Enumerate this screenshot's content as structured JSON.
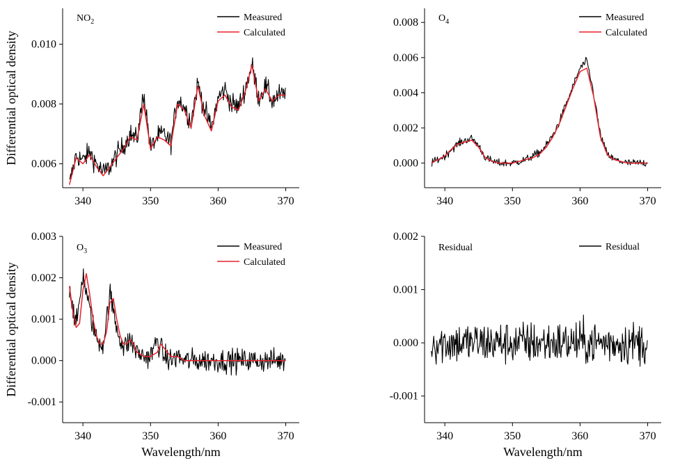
{
  "chart_data": [
    {
      "type": "line",
      "panel_label_main": "NO",
      "panel_label_sub": "2",
      "ylabel": "Differential optical density",
      "xlabel": "",
      "xlim": [
        337,
        372
      ],
      "ylim": [
        0.0052,
        0.0112
      ],
      "xticks": [
        340,
        350,
        360,
        370
      ],
      "xtick_labels": [
        "340",
        "350",
        "360",
        "370"
      ],
      "yticks": [
        0.006,
        0.008,
        0.01
      ],
      "ytick_labels": [
        "0.006",
        "0.008",
        "0.010"
      ],
      "legend_position": "top-right",
      "series": [
        {
          "name": "Measured",
          "color": "#000000",
          "noise": 0.00035,
          "x": [
            338,
            339,
            340,
            341,
            342,
            343,
            344,
            345,
            346,
            347,
            348,
            349,
            350,
            351,
            352,
            353,
            354,
            355,
            356,
            357,
            358,
            359,
            360,
            361,
            362,
            363,
            364,
            365,
            366,
            367,
            368,
            369,
            370
          ],
          "y": [
            0.0053,
            0.0063,
            0.0061,
            0.0064,
            0.006,
            0.0057,
            0.0059,
            0.0063,
            0.0066,
            0.007,
            0.0068,
            0.0084,
            0.0065,
            0.0069,
            0.007,
            0.0067,
            0.0082,
            0.0079,
            0.0074,
            0.0087,
            0.0078,
            0.0072,
            0.0082,
            0.0085,
            0.008,
            0.0079,
            0.0085,
            0.0093,
            0.0082,
            0.0086,
            0.0081,
            0.0083,
            0.0083
          ]
        },
        {
          "name": "Calculated",
          "color": "#e8202a",
          "noise": 0,
          "x": [
            338,
            339,
            340,
            341,
            342,
            343,
            344,
            345,
            346,
            347,
            348,
            349,
            350,
            351,
            352,
            353,
            354,
            355,
            356,
            357,
            358,
            359,
            360,
            361,
            362,
            363,
            364,
            365,
            366,
            367,
            368,
            369,
            370
          ],
          "y": [
            0.0053,
            0.0062,
            0.006,
            0.0063,
            0.0059,
            0.0056,
            0.0059,
            0.0062,
            0.0065,
            0.0069,
            0.0068,
            0.008,
            0.0065,
            0.0069,
            0.0068,
            0.0066,
            0.008,
            0.0078,
            0.0072,
            0.0086,
            0.0076,
            0.0071,
            0.0081,
            0.0083,
            0.0079,
            0.0078,
            0.0084,
            0.0093,
            0.0081,
            0.0085,
            0.0081,
            0.0083,
            0.0083
          ]
        }
      ]
    },
    {
      "type": "line",
      "panel_label_main": "O",
      "panel_label_sub": "4",
      "ylabel": "",
      "xlabel": "",
      "xlim": [
        337,
        372
      ],
      "ylim": [
        -0.0014,
        0.0088
      ],
      "xticks": [
        340,
        350,
        360,
        370
      ],
      "xtick_labels": [
        "340",
        "350",
        "360",
        "370"
      ],
      "yticks": [
        0.0,
        0.002,
        0.004,
        0.006,
        0.008
      ],
      "ytick_labels": [
        "0.000",
        "0.002",
        "0.004",
        "0.006",
        "0.008"
      ],
      "legend_position": "top-right",
      "series": [
        {
          "name": "Measured",
          "color": "#000000",
          "noise": 0.00022,
          "x": [
            338,
            339,
            340,
            341,
            342,
            343,
            344,
            345,
            346,
            347,
            348,
            349,
            350,
            351,
            352,
            353,
            354,
            355,
            356,
            357,
            358,
            359,
            360,
            361,
            362,
            363,
            364,
            365,
            366,
            367,
            368,
            369,
            370
          ],
          "y": [
            0.0,
            0.0002,
            0.0004,
            0.0008,
            0.0011,
            0.0013,
            0.0014,
            0.001,
            0.0003,
            0.0001,
            0.0,
            0.0,
            0.0,
            0.0001,
            0.0002,
            0.0004,
            0.0006,
            0.001,
            0.0016,
            0.0024,
            0.0034,
            0.0044,
            0.0054,
            0.0058,
            0.004,
            0.0016,
            0.0005,
            0.0002,
            0.0001,
            0.0,
            0.0,
            0.0,
            0.0
          ]
        },
        {
          "name": "Calculated",
          "color": "#e8202a",
          "noise": 0,
          "x": [
            338,
            339,
            340,
            341,
            342,
            343,
            344,
            345,
            346,
            347,
            348,
            349,
            350,
            351,
            352,
            353,
            354,
            355,
            356,
            357,
            358,
            359,
            360,
            361,
            362,
            363,
            364,
            365,
            366,
            367,
            368,
            369,
            370
          ],
          "y": [
            0.0,
            0.0002,
            0.0004,
            0.0008,
            0.0011,
            0.0012,
            0.0013,
            0.0009,
            0.0003,
            0.0001,
            0.0,
            0.0,
            0.0,
            0.0001,
            0.0002,
            0.0003,
            0.0005,
            0.0009,
            0.0015,
            0.0023,
            0.0033,
            0.0043,
            0.0052,
            0.0054,
            0.0038,
            0.0015,
            0.0005,
            0.0002,
            0.0001,
            0.0,
            0.0,
            0.0,
            0.0
          ]
        }
      ]
    },
    {
      "type": "line",
      "panel_label_main": "O",
      "panel_label_sub": "3",
      "ylabel": "Differential optical density",
      "xlabel": "Wavelength/nm",
      "xlim": [
        337,
        372
      ],
      "ylim": [
        -0.0015,
        0.003
      ],
      "xticks": [
        340,
        350,
        360,
        370
      ],
      "xtick_labels": [
        "340",
        "350",
        "360",
        "370"
      ],
      "yticks": [
        -0.001,
        0.0,
        0.001,
        0.002,
        0.003
      ],
      "ytick_labels": [
        "-0.001",
        "0.000",
        "0.001",
        "0.002",
        "0.003"
      ],
      "legend_position": "top-right",
      "series": [
        {
          "name": "Measured",
          "color": "#000000",
          "noise": 0.00028,
          "x": [
            338,
            339,
            340,
            341,
            342,
            343,
            344,
            345,
            346,
            347,
            348,
            349,
            350,
            351,
            352,
            353,
            354,
            355,
            356,
            357,
            358,
            359,
            360,
            361,
            362,
            363,
            364,
            365,
            366,
            367,
            368,
            369,
            370
          ],
          "y": [
            0.0018,
            0.0008,
            0.0021,
            0.0012,
            0.0005,
            0.0004,
            0.0016,
            0.0008,
            0.0003,
            0.0005,
            0.0002,
            0.0001,
            0.0001,
            0.0005,
            0.0001,
            0.0,
            0.0001,
            0.0,
            0.0,
            0.0,
            0.0,
            0.0,
            0.0,
            0.0,
            0.0,
            0.0,
            0.0,
            0.0,
            0.0,
            0.0,
            0.0,
            0.0,
            0.0
          ]
        },
        {
          "name": "Calculated",
          "color": "#e8202a",
          "noise": 0,
          "x": [
            338,
            338.5,
            339,
            339.5,
            340,
            340.5,
            341,
            341.5,
            342,
            342.5,
            343,
            343.5,
            344,
            344.5,
            345,
            345.5,
            346,
            346.5,
            347,
            347.5,
            348,
            349,
            350,
            351,
            351.5,
            352,
            353,
            354,
            355,
            356,
            358,
            360,
            362,
            364,
            366,
            368,
            370
          ],
          "y": [
            0.0018,
            0.0012,
            0.0008,
            0.0009,
            0.0017,
            0.0021,
            0.0016,
            0.001,
            0.0006,
            0.0004,
            0.0004,
            0.0007,
            0.0014,
            0.0015,
            0.001,
            0.0006,
            0.0004,
            0.0004,
            0.0005,
            0.0004,
            0.0002,
            0.0001,
            0.0001,
            0.0002,
            0.0004,
            0.0003,
            0.0001,
            0.0001,
            0.0,
            0.0,
            0.0,
            0.0,
            0.0,
            0.0,
            0.0,
            0.0,
            0.0
          ]
        }
      ]
    },
    {
      "type": "line",
      "panel_label_main": "Residual",
      "panel_label_sub": "",
      "ylabel": "",
      "xlabel": "Wavelength/nm",
      "xlim": [
        337,
        372
      ],
      "ylim": [
        -0.0015,
        0.002
      ],
      "xticks": [
        340,
        350,
        360,
        370
      ],
      "xtick_labels": [
        "340",
        "350",
        "360",
        "370"
      ],
      "yticks": [
        -0.001,
        0.0,
        0.001,
        0.002
      ],
      "ytick_labels": [
        "-0.001",
        "0.000",
        "0.001",
        "0.002"
      ],
      "legend_position": "top-right",
      "series": [
        {
          "name": "Residual",
          "color": "#000000",
          "noise": 0.0004,
          "x": [
            338,
            370
          ],
          "y": [
            0.0,
            0.0
          ]
        }
      ]
    }
  ]
}
